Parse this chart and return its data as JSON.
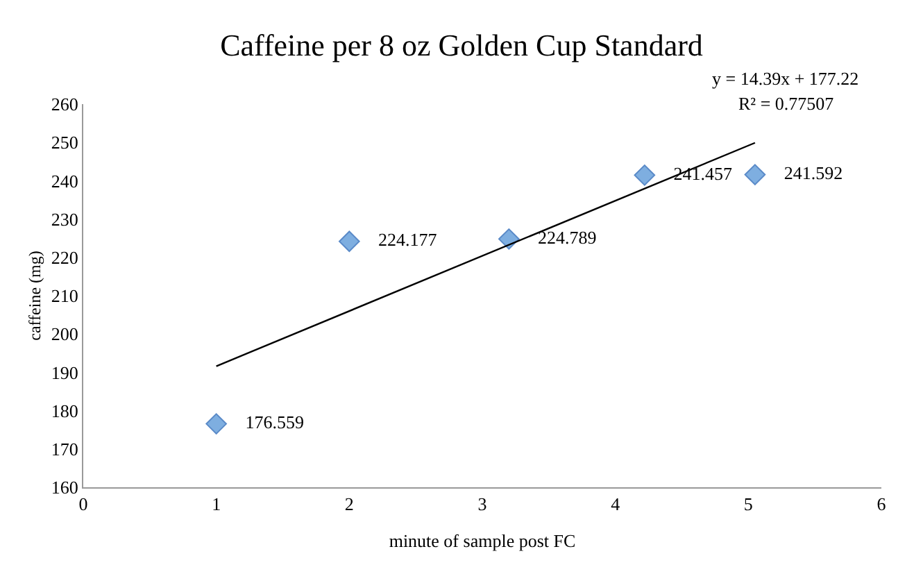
{
  "chart_data": {
    "type": "scatter",
    "title": "Caffeine per 8 oz Golden Cup Standard",
    "xlabel": "minute of sample post FC",
    "ylabel": "caffeine (mg)",
    "xlim": [
      0,
      6
    ],
    "xticks": [
      0,
      1,
      2,
      3,
      4,
      5,
      6
    ],
    "ylim": [
      160,
      260
    ],
    "yticks": [
      160,
      170,
      180,
      190,
      200,
      210,
      220,
      230,
      240,
      250,
      260
    ],
    "marker": "diamond",
    "series": [
      {
        "color": "#7eaee0",
        "x": [
          1,
          2,
          3.2,
          4.22,
          5.05
        ],
        "values": [
          176.559,
          224.177,
          224.789,
          241.457,
          241.592
        ],
        "value_labels": [
          "176.559",
          "224.177",
          "224.789",
          "241.457",
          "241.592"
        ]
      },
      {
        "type": "line",
        "marker": "none",
        "color": "#000000",
        "x": [
          1,
          5.05
        ],
        "values": [
          191.6,
          249.9
        ]
      }
    ],
    "annotations": [
      "y = 14.39x + 177.22",
      "R² = 0.77507"
    ]
  }
}
